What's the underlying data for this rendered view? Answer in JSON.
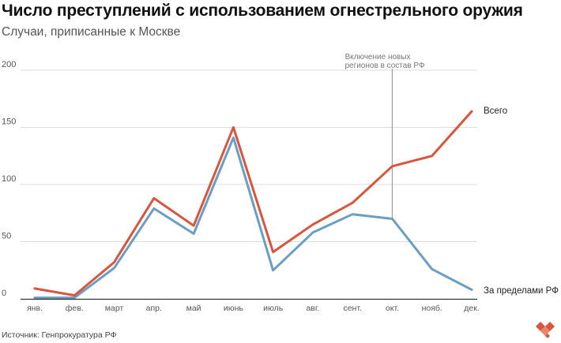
{
  "header": {
    "title": "Число преступлений с использованием огнестрельного оружия",
    "subtitle": "Случаи, приписанные к Москве"
  },
  "footer": {
    "source": "Источник: Генпрокуратура РФ"
  },
  "colors": {
    "total": "#d9553c",
    "outside": "#6a9ec4",
    "grid": "#dcdcdc",
    "annotation_line": "#9e9e9e"
  },
  "chart_data": {
    "type": "line",
    "title": "Число преступлений с использованием огнестрельного оружия",
    "subtitle": "Случаи, приписанные к Москве",
    "xlabel": "",
    "ylabel": "",
    "ylim": [
      0,
      200
    ],
    "yticks": [
      0,
      50,
      100,
      150,
      200
    ],
    "grid": true,
    "categories": [
      "янв.",
      "фев.",
      "март",
      "апр.",
      "май",
      "июнь",
      "июль",
      "авг.",
      "сент.",
      "окт.",
      "нояб.",
      "дек."
    ],
    "series": [
      {
        "name": "Всего",
        "color": "#d9553c",
        "values": [
          9,
          3,
          32,
          88,
          64,
          150,
          41,
          65,
          84,
          116,
          125,
          164
        ]
      },
      {
        "name": "За пределами РФ",
        "color": "#6a9ec4",
        "values": [
          1,
          1,
          27,
          79,
          57,
          141,
          25,
          58,
          74,
          70,
          26,
          8
        ]
      }
    ],
    "annotation": {
      "category": "окт.",
      "lines": [
        "Включение новых",
        "регионов в состав РФ"
      ]
    }
  }
}
